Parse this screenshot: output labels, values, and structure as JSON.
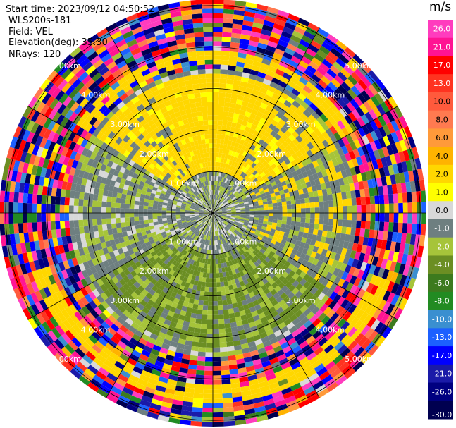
{
  "chart_data": {
    "type": "heatmap",
    "projection": "polar-ppi",
    "info": {
      "start_time_label": "Start time: 2023/09/12 04:50:52",
      "instrument_label": "WLS200s-181",
      "field_label": "Field: VEL",
      "elevation_label": "Elevation(deg): 35.30",
      "nrays_label": "NRays: 120"
    },
    "nrays": 120,
    "range_rings_km": [
      1,
      2,
      3,
      4,
      5
    ],
    "max_range_km": 5.15,
    "ring_labels": [
      "1.00km",
      "2.00km",
      "3.00km",
      "4.00km",
      "5.00km"
    ],
    "colorbar": {
      "unit": "m/s",
      "range": [
        -30,
        30
      ],
      "ticks": [
        "26.0",
        "21.0",
        "17.0",
        "13.0",
        "10.0",
        "8.0",
        "6.0",
        "4.0",
        "2.0",
        "1.0",
        "0.0",
        "-1.0",
        "-2.0",
        "-4.0",
        "-6.0",
        "-8.0",
        "-10.0",
        "-13.0",
        "-17.0",
        "-21.0",
        "-26.0",
        "-30.0"
      ],
      "bins": [
        {
          "lo": 26,
          "hi": 30,
          "color": "#ff3cbe"
        },
        {
          "lo": 21,
          "hi": 26,
          "color": "#ff1493"
        },
        {
          "lo": 17,
          "hi": 21,
          "color": "#ff0000"
        },
        {
          "lo": 13,
          "hi": 17,
          "color": "#ff3320"
        },
        {
          "lo": 10,
          "hi": 13,
          "color": "#ff5a3c"
        },
        {
          "lo": 8,
          "hi": 10,
          "color": "#ff7a50"
        },
        {
          "lo": 6,
          "hi": 8,
          "color": "#ff9a3a"
        },
        {
          "lo": 4,
          "hi": 6,
          "color": "#ffb300"
        },
        {
          "lo": 2,
          "hi": 4,
          "color": "#ffd700"
        },
        {
          "lo": 1,
          "hi": 2,
          "color": "#ffff00"
        },
        {
          "lo": 0,
          "hi": 1,
          "color": "#d8d8d8"
        },
        {
          "lo": -1,
          "hi": 0,
          "color": "#6e7f80"
        },
        {
          "lo": -2,
          "hi": -1,
          "color": "#a6c43a"
        },
        {
          "lo": -4,
          "hi": -2,
          "color": "#6b8e23"
        },
        {
          "lo": -6,
          "hi": -4,
          "color": "#3c7a1e"
        },
        {
          "lo": -8,
          "hi": -6,
          "color": "#228b22"
        },
        {
          "lo": -10,
          "hi": -8,
          "color": "#3a8fd0"
        },
        {
          "lo": -13,
          "hi": -10,
          "color": "#1c60ff"
        },
        {
          "lo": -17,
          "hi": -13,
          "color": "#0000ff"
        },
        {
          "lo": -21,
          "hi": -17,
          "color": "#1a1aa8"
        },
        {
          "lo": -26,
          "hi": -21,
          "color": "#000080"
        },
        {
          "lo": -30,
          "hi": -26,
          "color": "#000050"
        }
      ]
    },
    "velocity_pattern": {
      "noise_start_km": 3.5,
      "north": {
        "value": 2.5,
        "extent_km": 3.4
      },
      "south": {
        "value": -3,
        "extent_km": 3.2
      },
      "near_field": {
        "value": -0.5,
        "extent_km": 1.0
      },
      "east_west": {
        "value": -0.5
      },
      "far_bands": [
        {
          "direction": "south",
          "value": 2.5,
          "from_km": 4.1,
          "to_km": 4.6
        },
        {
          "direction": "north",
          "value": 2.5,
          "from_km": 3.6,
          "to_km": 3.9
        }
      ]
    }
  }
}
